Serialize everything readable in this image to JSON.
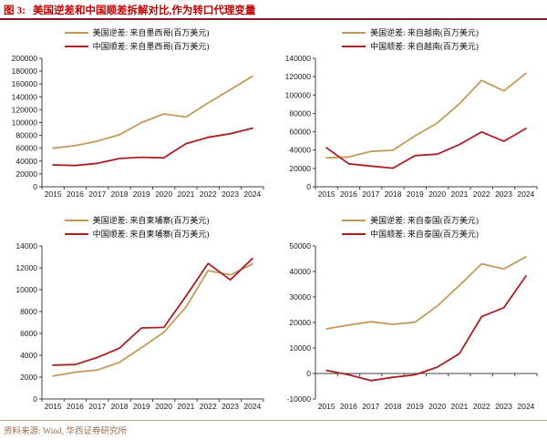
{
  "figure": {
    "label": "图 3:",
    "title": "美国逆差和中国顺差拆解对比,作为转口代理变量"
  },
  "source": {
    "label": "资料来源:",
    "text": "Wind, 华西证券研究所"
  },
  "colors": {
    "us": "#C49A5B",
    "cn": "#A82022",
    "title": "#C00000",
    "header_rule": "#7E1D1D",
    "axis": "#404040",
    "footer_text": "#9C6B45",
    "footer_rule": "#C9A87E"
  },
  "chart_data": [
    {
      "type": "line",
      "region": "墨西哥",
      "categories": [
        "2015",
        "2016",
        "2017",
        "2018",
        "2019",
        "2020",
        "2021",
        "2022",
        "2023",
        "2024"
      ],
      "series": [
        {
          "name": "美国逆差: 来自墨西哥(百万美元)",
          "color_key": "us",
          "values": [
            60000,
            64000,
            71000,
            81000,
            100000,
            113500,
            108500,
            130500,
            151000,
            172000
          ]
        },
        {
          "name": "中国顺差: 来自墨西哥(百万美元)",
          "color_key": "cn",
          "values": [
            34000,
            33000,
            36500,
            44000,
            46000,
            45000,
            67000,
            77000,
            82500,
            91000
          ]
        }
      ],
      "ylim": [
        0,
        200000
      ],
      "ytick": 20000,
      "grid": false,
      "legend_position": "top"
    },
    {
      "type": "line",
      "region": "越南",
      "categories": [
        "2015",
        "2016",
        "2017",
        "2018",
        "2019",
        "2020",
        "2021",
        "2022",
        "2023",
        "2024"
      ],
      "series": [
        {
          "name": "美国逆差: 来自越南(百万美元)",
          "color_key": "us",
          "values": [
            31500,
            32500,
            38500,
            39800,
            55500,
            69500,
            90500,
            116000,
            104500,
            123500
          ]
        },
        {
          "name": "中国顺差: 来自越南(百万美元)",
          "color_key": "cn",
          "values": [
            42500,
            25000,
            22500,
            20300,
            34000,
            35500,
            46000,
            59800,
            49500,
            63500
          ]
        }
      ],
      "ylim": [
        0,
        140000
      ],
      "ytick": 20000,
      "grid": false,
      "legend_position": "top"
    },
    {
      "type": "line",
      "region": "柬埔寨",
      "categories": [
        "2015",
        "2016",
        "2017",
        "2018",
        "2019",
        "2020",
        "2021",
        "2022",
        "2023",
        "2024"
      ],
      "series": [
        {
          "name": "美国逆差: 来自柬埔寨(百万美元)",
          "color_key": "us",
          "values": [
            2100,
            2450,
            2650,
            3350,
            4700,
            6100,
            8400,
            11750,
            11350,
            12350
          ]
        },
        {
          "name": "中国顺差: 来自柬埔寨(百万美元)",
          "color_key": "cn",
          "values": [
            3100,
            3150,
            3800,
            4650,
            6500,
            6550,
            9400,
            12400,
            10900,
            12850
          ]
        }
      ],
      "ylim": [
        0,
        14000
      ],
      "ytick": 2000,
      "grid": false,
      "legend_position": "top"
    },
    {
      "type": "line",
      "region": "泰国",
      "categories": [
        "2015",
        "2016",
        "2017",
        "2018",
        "2019",
        "2020",
        "2021",
        "2022",
        "2023",
        "2024"
      ],
      "series": [
        {
          "name": "美国逆差: 来自泰国(百万美元)",
          "color_key": "us",
          "values": [
            17500,
            19000,
            20300,
            19300,
            20100,
            26500,
            34500,
            43000,
            41000,
            45700
          ]
        },
        {
          "name": "中国顺差: 来自泰国(百万美元)",
          "color_key": "cn",
          "values": [
            1200,
            -500,
            -2800,
            -1500,
            -500,
            2500,
            7800,
            22300,
            25800,
            38200
          ]
        }
      ],
      "ylim": [
        -10000,
        50000
      ],
      "ytick": 10000,
      "grid": false,
      "legend_position": "top"
    }
  ]
}
